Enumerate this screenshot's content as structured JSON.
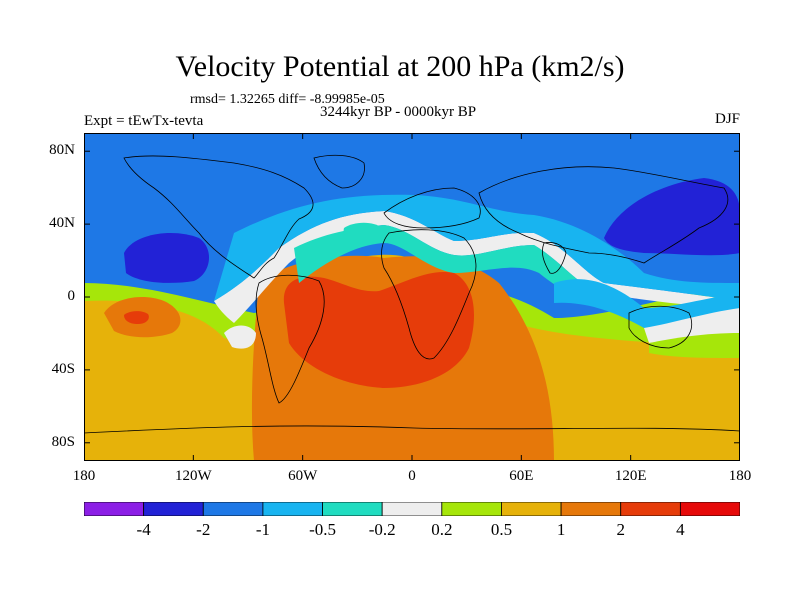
{
  "header": {
    "title": "Velocity Potential at 200 hPa (km2/s)",
    "stats": "rmsd= 1.32265 diff= -8.99985e-05",
    "period": "3244kyr BP - 0000kyr BP",
    "experiment": "Expt = tEwTx-tevta",
    "season": "DJF"
  },
  "map": {
    "projection": "cylindrical equidistant",
    "lon_range": [
      -180,
      180
    ],
    "lat_range": [
      -90,
      90
    ],
    "y_ticks": [
      {
        "lat": 80,
        "label": "80N"
      },
      {
        "lat": 40,
        "label": "40N"
      },
      {
        "lat": 0,
        "label": "0"
      },
      {
        "lat": -40,
        "label": "40S"
      },
      {
        "lat": -80,
        "label": "80S"
      }
    ],
    "x_ticks": [
      {
        "lon": -180,
        "label": "180"
      },
      {
        "lon": -120,
        "label": "120W"
      },
      {
        "lon": -60,
        "label": "60W"
      },
      {
        "lon": 0,
        "label": "0"
      },
      {
        "lon": 60,
        "label": "60E"
      },
      {
        "lon": 120,
        "label": "120E"
      },
      {
        "lon": 180,
        "label": "180"
      }
    ],
    "features": [
      {
        "name": "Atlantic/Africa/South America positive center",
        "lon": -10,
        "lat": -20,
        "value": 2.5
      },
      {
        "name": "Eastern North Pacific negative center",
        "lon": -140,
        "lat": 20,
        "value": -2.2
      },
      {
        "name": "Western North Pacific negative center",
        "lon": 150,
        "lat": 42,
        "value": -2.2
      },
      {
        "name": "South Pacific positive center",
        "lon": -156,
        "lat": -12,
        "value": 2.2
      }
    ]
  },
  "colorbar": {
    "levels": [
      "-4",
      "-2",
      "-1",
      "-0.5",
      "-0.2",
      "0.2",
      "0.5",
      "1",
      "2",
      "4"
    ],
    "colors": [
      "#8c1fe6",
      "#2222d6",
      "#1e78e6",
      "#18b4f0",
      "#20dcc0",
      "#eeeeee",
      "#a6e60a",
      "#e6b20a",
      "#e6780a",
      "#e63c0a",
      "#e60a0a"
    ]
  }
}
